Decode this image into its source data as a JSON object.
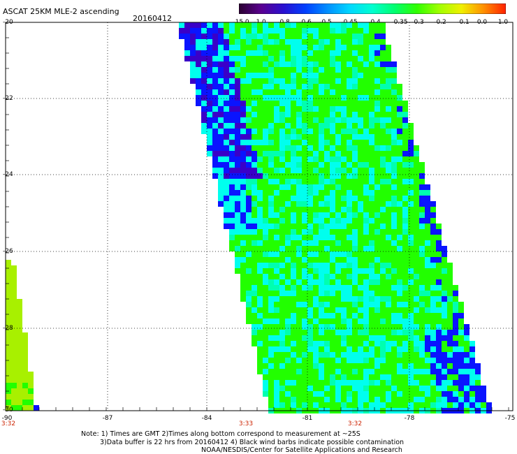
{
  "header": {
    "title": "ASCAT 25KM MLE-2 ascending",
    "date": "20160412"
  },
  "colorbar": {
    "labels": [
      "-15.0",
      "-1.0",
      "-0.8",
      "-0.6",
      "-0.5",
      "-0.45",
      "-0.4",
      "-0.35",
      "-0.3",
      "-0.2",
      "-0.1",
      "0.0",
      "1.0"
    ],
    "colors": [
      "#2a0030",
      "#5a0090",
      "#2a10d0",
      "#0040ff",
      "#0090ff",
      "#00d8ff",
      "#00ffd0",
      "#00ff70",
      "#30ff00",
      "#a0ff00",
      "#f0f000",
      "#ff9000",
      "#ff2000"
    ]
  },
  "map": {
    "lat_labels": [
      "-20",
      "-22",
      "-24",
      "-26",
      "-28",
      "-30"
    ],
    "lon_labels": [
      "-90",
      "-87",
      "-84",
      "-81",
      "-78",
      "-75"
    ],
    "time_labels": [
      "3:32",
      "3:33",
      "3:32"
    ],
    "swath_colors": {
      "green": "#22ff00",
      "cyan": "#00ffee",
      "aqua": "#00ffb0",
      "blue": "#0a14ff",
      "darkblue": "#3a00c8",
      "purple": "#380060",
      "yellowgreen": "#a8f000"
    }
  },
  "notes": {
    "line1": "Note: 1) Times are GMT 2)Times along bottom correspond to measurement at ~25S",
    "line2": "3)Data buffer is 22 hrs from 20160412 4) Black wind barbs indicate possible contamination",
    "line3": "NOAA/NESDIS/Center for Satellite Applications and Research"
  }
}
